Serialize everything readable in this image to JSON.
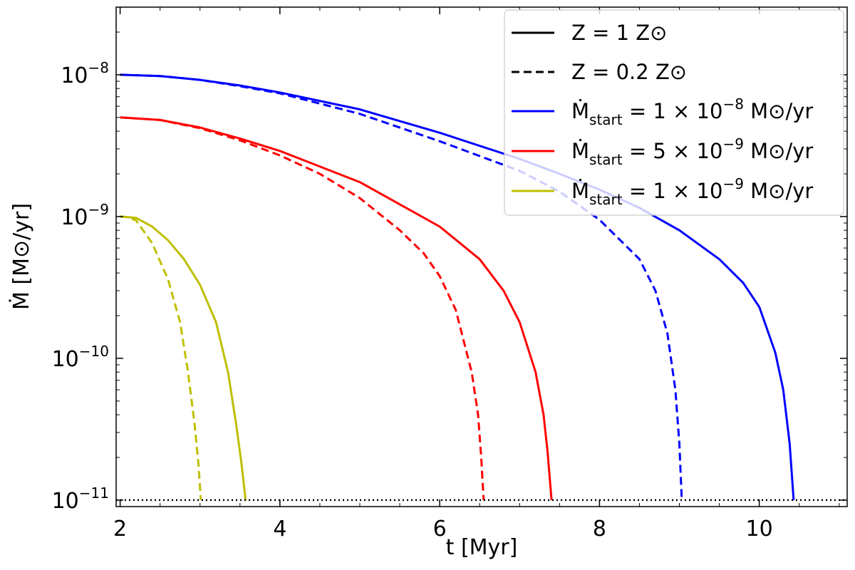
{
  "chart_data": {
    "type": "line",
    "xlabel": "t [Myr]",
    "ylabel": "Ṁ [M⊙/yr]",
    "x_scale": "linear",
    "y_scale": "log",
    "xlim": [
      1.95,
      11.1
    ],
    "ylim": [
      9e-12,
      3e-08
    ],
    "x_ticks": [
      {
        "value": 2,
        "label": "2"
      },
      {
        "value": 4,
        "label": "4"
      },
      {
        "value": 6,
        "label": "6"
      },
      {
        "value": 8,
        "label": "8"
      },
      {
        "value": 10,
        "label": "10"
      }
    ],
    "y_ticks": [
      {
        "value": 1e-08,
        "base": "10",
        "exp": "−8"
      },
      {
        "value": 1e-09,
        "base": "10",
        "exp": "−9"
      },
      {
        "value": 1e-10,
        "base": "10",
        "exp": "−10"
      },
      {
        "value": 1e-11,
        "base": "10",
        "exp": "−11"
      }
    ],
    "grid": false,
    "legend_position": "top-right",
    "legend": [
      {
        "label": "Z = 1 Z⊙",
        "color": "#000000",
        "dash": "solid"
      },
      {
        "label": "Z = 0.2 Z⊙",
        "color": "#000000",
        "dash": "dashed"
      },
      {
        "label": "Ṁstart = 1 × 10−8 M⊙/yr",
        "label_parts": [
          "Ṁ",
          "start",
          " = 1 × 10",
          "−8",
          " M⊙/yr"
        ],
        "color": "#0000ff",
        "dash": "solid"
      },
      {
        "label": "Ṁstart = 5 × 10−9 M⊙/yr",
        "label_parts": [
          "Ṁ",
          "start",
          " = 5 × 10",
          "−9",
          " M⊙/yr"
        ],
        "color": "#ff0000",
        "dash": "solid"
      },
      {
        "label": "Ṁstart = 1 × 10−9 M⊙/yr",
        "label_parts": [
          "Ṁ",
          "start",
          " = 1 × 10",
          "−9",
          " M⊙/yr"
        ],
        "color": "#bfbf00",
        "dash": "solid"
      }
    ],
    "reference_line": {
      "y": 1e-11,
      "color": "#000000",
      "dash": "dotted"
    },
    "series": [
      {
        "color": "#0000ff",
        "dash": "solid",
        "x": [
          2.0,
          2.5,
          3.0,
          3.5,
          4.0,
          5.0,
          6.0,
          7.0,
          7.5,
          8.0,
          8.5,
          9.0,
          9.5,
          9.8,
          10.0,
          10.2,
          10.3,
          10.38,
          10.43
        ],
        "y": [
          1e-08,
          9.8e-09,
          9.2e-09,
          8.4e-09,
          7.5e-09,
          5.7e-09,
          3.9e-09,
          2.55e-09,
          2e-09,
          1.55e-09,
          1.15e-09,
          8e-10,
          5e-10,
          3.4e-10,
          2.3e-10,
          1.1e-10,
          6e-11,
          2.5e-11,
          1e-11
        ]
      },
      {
        "color": "#0000ff",
        "dash": "dashed",
        "x": [
          2.0,
          2.5,
          3.0,
          3.5,
          4.0,
          5.0,
          6.0,
          7.0,
          7.5,
          8.0,
          8.5,
          8.7,
          8.85,
          8.95,
          9.0,
          9.03
        ],
        "y": [
          1e-08,
          9.8e-09,
          9.2e-09,
          8.3e-09,
          7.4e-09,
          5.3e-09,
          3.4e-09,
          2.1e-09,
          1.5e-09,
          9.5e-10,
          5e-10,
          3e-10,
          1.5e-10,
          6e-11,
          2.5e-11,
          1e-11
        ]
      },
      {
        "color": "#ff0000",
        "dash": "solid",
        "x": [
          2.0,
          2.5,
          3.0,
          3.5,
          4.0,
          5.0,
          6.0,
          6.5,
          6.8,
          7.0,
          7.2,
          7.3,
          7.35,
          7.4
        ],
        "y": [
          5e-09,
          4.8e-09,
          4.25e-09,
          3.55e-09,
          2.9e-09,
          1.75e-09,
          8.5e-10,
          5e-10,
          3e-10,
          1.8e-10,
          8e-11,
          4e-11,
          2.2e-11,
          1e-11
        ]
      },
      {
        "color": "#ff0000",
        "dash": "dashed",
        "x": [
          2.0,
          2.5,
          3.0,
          3.5,
          4.0,
          4.5,
          5.0,
          5.5,
          5.8,
          6.0,
          6.2,
          6.4,
          6.48,
          6.52,
          6.55
        ],
        "y": [
          5e-09,
          4.8e-09,
          4.2e-09,
          3.45e-09,
          2.7e-09,
          2e-09,
          1.35e-09,
          8e-10,
          5.5e-10,
          3.8e-10,
          2.2e-10,
          8e-11,
          4e-11,
          2e-11,
          1e-11
        ]
      },
      {
        "color": "#bfbf00",
        "dash": "solid",
        "x": [
          2.0,
          2.2,
          2.4,
          2.6,
          2.8,
          3.0,
          3.2,
          3.35,
          3.45,
          3.52,
          3.57
        ],
        "y": [
          1e-09,
          9.8e-10,
          8.5e-10,
          6.8e-10,
          5e-10,
          3.3e-10,
          1.8e-10,
          8e-11,
          3.5e-11,
          1.8e-11,
          1e-11
        ]
      },
      {
        "color": "#bfbf00",
        "dash": "dashed",
        "x": [
          2.0,
          2.1,
          2.2,
          2.4,
          2.6,
          2.75,
          2.85,
          2.93,
          2.98,
          3.01
        ],
        "y": [
          1e-09,
          9.9e-10,
          9.4e-10,
          6.5e-10,
          3.6e-10,
          1.8e-10,
          8e-11,
          3.5e-11,
          1.8e-11,
          1e-11
        ]
      }
    ]
  }
}
